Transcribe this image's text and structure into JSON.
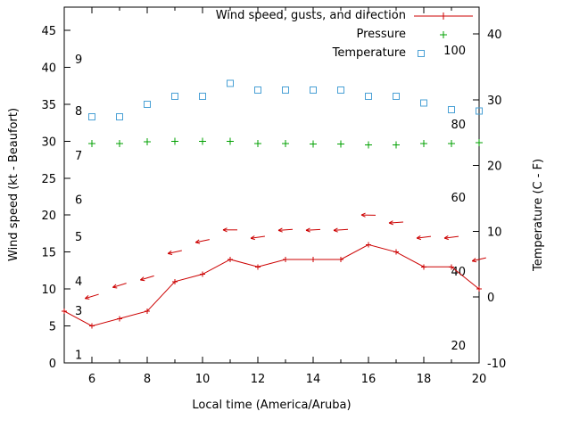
{
  "chart_data": {
    "type": "line",
    "title": "",
    "xlabel": "Local time (America/Aruba)",
    "ylabel": "Wind speed (kt - Beaufort)",
    "y2label": "Temperature (C - F)",
    "x_range": [
      5,
      20
    ],
    "x_major_ticks": [
      6,
      8,
      10,
      12,
      14,
      16,
      18,
      20
    ],
    "x_minor_ticks": [
      7,
      9,
      11,
      13,
      15,
      17,
      19
    ],
    "y_left_range": [
      0,
      48.14
    ],
    "y_left_ticks": [
      0,
      5,
      10,
      15,
      20,
      25,
      30,
      35,
      40,
      45
    ],
    "y_right_range": [
      -10,
      44.07
    ],
    "y_right_ticks": [
      -10,
      0,
      10,
      20,
      30,
      40
    ],
    "grid": false,
    "legend_position": "top-right-inside",
    "beaufort_scale_labels": [
      {
        "label": "1",
        "kt": 1
      },
      {
        "label": "3",
        "kt": 7
      },
      {
        "label": "4",
        "kt": 11
      },
      {
        "label": "5",
        "kt": 17
      },
      {
        "label": "6",
        "kt": 22
      },
      {
        "label": "7",
        "kt": 28
      },
      {
        "label": "8",
        "kt": 34
      },
      {
        "label": "9",
        "kt": 41
      }
    ],
    "right_inner_scale_labels": [
      {
        "label": "20",
        "kt": 2.3
      },
      {
        "label": "40",
        "kt": 12.3
      },
      {
        "label": "60",
        "kt": 22.3
      },
      {
        "label": "80",
        "kt": 32.2
      },
      {
        "label": "100",
        "kt": 42.2
      }
    ],
    "series": [
      {
        "name": "Wind speed",
        "axis": "left",
        "style": "line-plus",
        "color_key": "wind",
        "x": [
          5,
          6,
          7,
          8,
          9,
          10,
          11,
          12,
          13,
          14,
          15,
          16,
          17,
          18,
          19,
          20
        ],
        "values": [
          7,
          5,
          6,
          7,
          11,
          12,
          14,
          13,
          14,
          14,
          14,
          16,
          15,
          13,
          13,
          10
        ],
        "unit": "kt"
      },
      {
        "name": "Wind gusts and direction",
        "axis": "left",
        "style": "arrow",
        "color_key": "wind",
        "x": [
          6,
          7,
          8,
          9,
          10,
          11,
          12,
          13,
          14,
          15,
          16,
          17,
          18,
          19,
          20
        ],
        "values": [
          9,
          10.5,
          11.5,
          15,
          16.5,
          18,
          17,
          18,
          18,
          18,
          20,
          19,
          17,
          17,
          14
        ],
        "arrow_angles_deg": [
          197,
          197,
          197,
          192,
          192,
          180,
          188,
          184,
          183,
          184,
          179,
          184,
          187,
          187,
          193
        ],
        "unit": "kt"
      },
      {
        "name": "Pressure",
        "axis": "left",
        "style": "plus",
        "color_key": "pressure",
        "x": [
          6,
          7,
          8,
          9,
          10,
          11,
          12,
          13,
          14,
          15,
          16,
          17,
          18,
          19,
          20
        ],
        "values": [
          29.7,
          29.7,
          29.9,
          30.0,
          30.0,
          30.0,
          29.7,
          29.7,
          29.6,
          29.6,
          29.5,
          29.5,
          29.7,
          29.7,
          29.8
        ],
        "unit": "inHg"
      },
      {
        "name": "Temperature",
        "axis": "right",
        "style": "square",
        "color_key": "temperature",
        "x": [
          6,
          7,
          8,
          9,
          10,
          11,
          12,
          13,
          14,
          15,
          16,
          17,
          18,
          19,
          20
        ],
        "values": [
          27.4,
          27.4,
          29.3,
          30.5,
          30.5,
          32.5,
          31.5,
          31.5,
          31.5,
          31.5,
          30.5,
          30.5,
          29.5,
          28.5,
          28.3
        ],
        "unit": "C"
      }
    ],
    "legend": [
      {
        "label": "Wind speed, gusts, and direction",
        "marker": "line-plus",
        "color_key": "wind"
      },
      {
        "label": "Pressure",
        "marker": "plus",
        "color_key": "pressure"
      },
      {
        "label": "Temperature",
        "marker": "square",
        "color_key": "temperature"
      }
    ],
    "colors": {
      "wind": "#cc0000",
      "pressure": "#00a000",
      "temperature": "#49a0d5",
      "axis": "#000000",
      "background": "#ffffff"
    }
  }
}
